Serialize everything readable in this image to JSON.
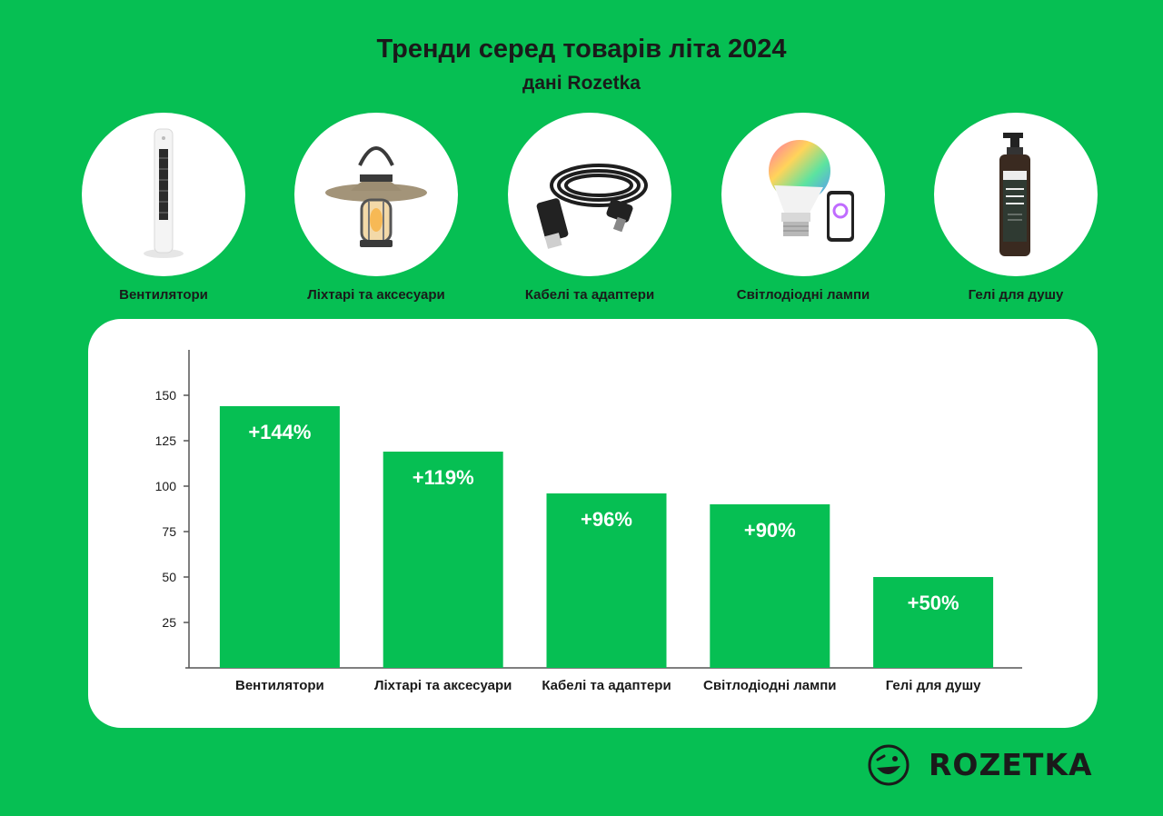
{
  "header": {
    "title": "Тренди серед товарів літа 2024",
    "subtitle": "дані Rozetka"
  },
  "products": [
    {
      "label": "Вентилятори",
      "icon": "tower-fan-icon"
    },
    {
      "label": "Ліхтарі та аксесуари",
      "icon": "camping-lantern-icon"
    },
    {
      "label": "Кабелі та адаптери",
      "icon": "usb-cable-icon"
    },
    {
      "label": "Світлодіодні лампи",
      "icon": "smart-bulb-icon"
    },
    {
      "label": "Гелі для душу",
      "icon": "shower-gel-bottle-icon"
    }
  ],
  "chart_data": {
    "type": "bar",
    "categories": [
      "Вентилятори",
      "Ліхтарі та аксесуари",
      "Кабелі та адаптери",
      "Світлодіодні лампи",
      "Гелі для душу"
    ],
    "values": [
      144,
      119,
      96,
      90,
      50
    ],
    "data_labels": [
      "+144%",
      "+119%",
      "+96%",
      "+90%",
      "+50%"
    ],
    "yticks": [
      25,
      50,
      75,
      100,
      125,
      150
    ],
    "ylim": [
      0,
      175
    ],
    "grid": false,
    "legend": "none",
    "bar_color": "#06BF53",
    "label_color": "#FFFFFF"
  },
  "brand": {
    "name": "ROZETKA",
    "logo_icon": "rozetka-smiley-logo-icon",
    "color": "#1A1A1A"
  },
  "colors": {
    "background": "#06BF53",
    "panel": "#FFFFFF",
    "text": "#1A1A1A"
  }
}
